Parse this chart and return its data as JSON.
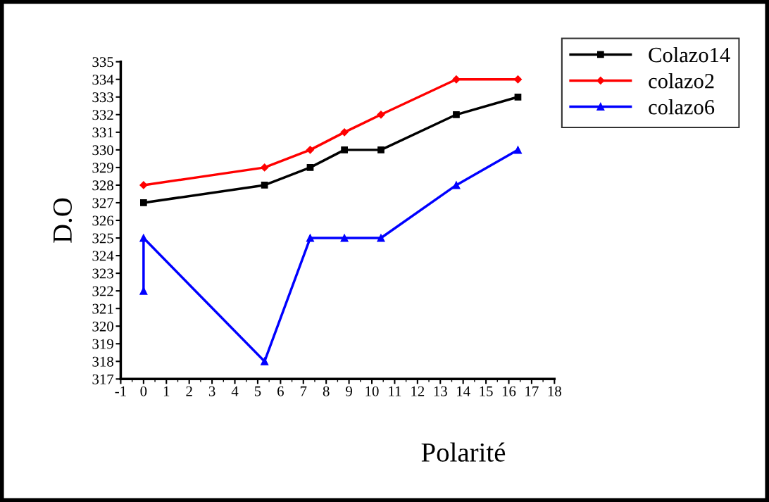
{
  "chart_data": {
    "type": "line",
    "xlabel": "Polarité",
    "ylabel": "D.O",
    "xlim": [
      -1,
      18
    ],
    "xticks": [
      -1,
      0,
      1,
      2,
      3,
      4,
      5,
      6,
      7,
      8,
      9,
      10,
      11,
      12,
      13,
      14,
      15,
      16,
      17,
      18
    ],
    "ylim": [
      317,
      335
    ],
    "yticks": [
      317,
      318,
      319,
      320,
      321,
      322,
      323,
      324,
      325,
      326,
      327,
      328,
      329,
      330,
      331,
      332,
      333,
      334,
      335
    ],
    "grid": false,
    "legend": "top right",
    "line_style": "solid",
    "series": [
      {
        "name": "Colazo14",
        "color": "#000000",
        "marker": "square",
        "x": [
          0,
          5.3,
          7.3,
          8.8,
          10.4,
          13.7,
          16.4
        ],
        "values": [
          327,
          328,
          329,
          330,
          330,
          332,
          333
        ]
      },
      {
        "name": "colazo2",
        "color": "#ff0000",
        "marker": "diamond",
        "x": [
          0,
          5.3,
          7.3,
          8.8,
          10.4,
          13.7,
          16.4
        ],
        "values": [
          328,
          329,
          330,
          331,
          332,
          334,
          334
        ]
      },
      {
        "name": "colazo6",
        "color": "#0000ff",
        "marker": "triangle",
        "x": [
          0,
          0,
          5.3,
          7.3,
          8.8,
          10.4,
          13.7,
          16.4
        ],
        "values": [
          322,
          325,
          318,
          325,
          325,
          325,
          328,
          330
        ]
      }
    ]
  }
}
